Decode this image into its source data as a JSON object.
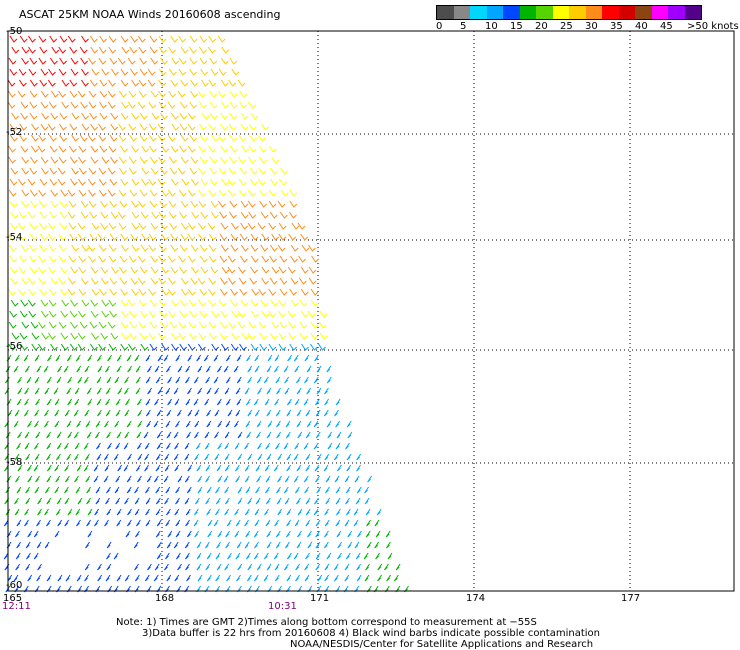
{
  "title": "ASCAT 25KM NOAA Winds 20160608 ascending",
  "legend": {
    "colors": [
      "#4d4d4d",
      "#888888",
      "#00d7ff",
      "#00a6ff",
      "#0048ff",
      "#00b400",
      "#55d400",
      "#ffff00",
      "#ffcc00",
      "#ff8c1a",
      "#ff0000",
      "#d40000",
      "#8b4513",
      "#ff00ff",
      "#a000ff",
      "#55008b"
    ],
    "labels": [
      "0",
      "5",
      "10",
      "15",
      "20",
      "25",
      "30",
      "35",
      "40",
      "45",
      ">50 knots"
    ]
  },
  "axes": {
    "latitudes": [
      "-50",
      "-52",
      "-54",
      "-56",
      "-58",
      "-60"
    ],
    "longitudes": [
      "165",
      "168",
      "171",
      "174",
      "177"
    ]
  },
  "times": [
    "12:11",
    "10:31"
  ],
  "notes": [
    "Note: 1) Times are GMT 2)Times along bottom correspond to measurement at −55S",
    "3)Data buffer is 22 hrs from 20160608 4) Black wind barbs indicate possible contamination",
    "NOAA/NESDIS/Center for Satellite Applications and Research"
  ]
}
